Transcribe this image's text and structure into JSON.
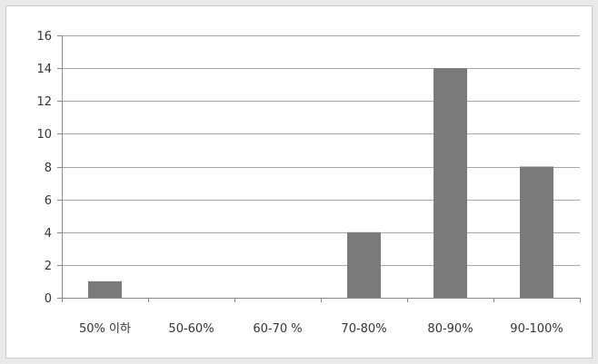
{
  "chart_data": {
    "type": "bar",
    "title": "",
    "xlabel": "",
    "ylabel": "",
    "categories": [
      "50% 이하",
      "50-60%",
      "60-70 %",
      "70-80%",
      "80-90%",
      "90-100%"
    ],
    "values": [
      1,
      0,
      0,
      4,
      14,
      8
    ],
    "ylim": [
      0,
      16
    ],
    "yticks": [
      0,
      2,
      4,
      6,
      8,
      10,
      12,
      14,
      16
    ],
    "grid": true,
    "legend": "none",
    "colors": {
      "bar": "#7a7a7a",
      "grid": "#a6a6a6",
      "axis": "#888888",
      "background": "#ffffff",
      "page": "#e9e9e9"
    }
  }
}
